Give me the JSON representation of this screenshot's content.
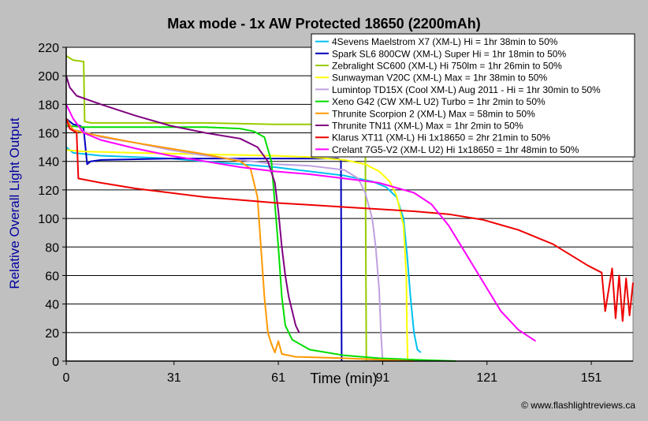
{
  "chart_data": {
    "type": "line",
    "title": "Max mode - 1x AW Protected 18650 (2200mAh)",
    "xlabel": "Time (min)",
    "ylabel": "Relative Overall Light Output",
    "xlim": [
      0,
      163
    ],
    "ylim": [
      0,
      220
    ],
    "x_ticks": [
      0,
      31,
      61,
      91,
      121,
      151
    ],
    "y_ticks": [
      0,
      20,
      40,
      60,
      80,
      100,
      120,
      140,
      160,
      180,
      200,
      220
    ],
    "grid": "horizontal",
    "legend_position": "top-right",
    "series": [
      {
        "name": "4Sevens Maelstrom X7 (XM-L) Hi = 1hr 38min to 50%",
        "color": "#00c0f0",
        "points": [
          [
            0,
            150
          ],
          [
            2,
            146
          ],
          [
            10,
            144
          ],
          [
            20,
            143
          ],
          [
            30,
            142
          ],
          [
            40,
            140
          ],
          [
            50,
            138
          ],
          [
            60,
            136
          ],
          [
            70,
            133
          ],
          [
            80,
            130
          ],
          [
            88,
            126
          ],
          [
            92,
            122
          ],
          [
            95,
            115
          ],
          [
            97,
            100
          ],
          [
            98,
            75
          ],
          [
            99,
            45
          ],
          [
            100,
            20
          ],
          [
            101,
            8
          ],
          [
            102,
            6
          ]
        ]
      },
      {
        "name": "Spark SL6 800CW (XM-L) Super Hi = 1hr 18min to 50%",
        "color": "#0000c0",
        "points": [
          [
            0,
            170
          ],
          [
            2,
            166
          ],
          [
            4,
            165
          ],
          [
            5,
            163
          ],
          [
            6,
            138
          ],
          [
            7,
            140
          ],
          [
            10,
            141
          ],
          [
            30,
            142
          ],
          [
            50,
            142
          ],
          [
            70,
            142
          ],
          [
            78,
            142
          ],
          [
            79,
            141
          ],
          [
            79.2,
            0
          ]
        ]
      },
      {
        "name": "Zebralight SC600 (XM-L) Hi 750lm = 1hr 26min to 50%",
        "color": "#99cc00",
        "points": [
          [
            0,
            214
          ],
          [
            2,
            211
          ],
          [
            5,
            210
          ],
          [
            5.3,
            168
          ],
          [
            7,
            167
          ],
          [
            20,
            167
          ],
          [
            40,
            167
          ],
          [
            60,
            166
          ],
          [
            75,
            166
          ],
          [
            85.5,
            166
          ],
          [
            86,
            165
          ],
          [
            86.3,
            0
          ]
        ]
      },
      {
        "name": "Sunwayman V20C (XM-L) Max = 1hr 38min to 50%",
        "color": "#ffff00",
        "points": [
          [
            0,
            148
          ],
          [
            5,
            147
          ],
          [
            20,
            146
          ],
          [
            40,
            145
          ],
          [
            60,
            144
          ],
          [
            70,
            143
          ],
          [
            80,
            141
          ],
          [
            86,
            138
          ],
          [
            90,
            133
          ],
          [
            93,
            126
          ],
          [
            95,
            116
          ],
          [
            97,
            95
          ],
          [
            97.8,
            60
          ],
          [
            98,
            20
          ],
          [
            98.2,
            0
          ]
        ]
      },
      {
        "name": "Lumintop TD15X (Cool XM-L) Aug 2011 - Hi = 1hr 30min to 50%",
        "color": "#c0a0e0",
        "points": [
          [
            0,
            165
          ],
          [
            2,
            162
          ],
          [
            5,
            161
          ],
          [
            10,
            157
          ],
          [
            20,
            153
          ],
          [
            30,
            148
          ],
          [
            40,
            144
          ],
          [
            50,
            141
          ],
          [
            60,
            138
          ],
          [
            70,
            137
          ],
          [
            80,
            134
          ],
          [
            84,
            128
          ],
          [
            86,
            118
          ],
          [
            88,
            100
          ],
          [
            89,
            80
          ],
          [
            90,
            50
          ],
          [
            90.5,
            20
          ],
          [
            91,
            0
          ]
        ]
      },
      {
        "name": "Xeno G42 (CW XM-L U2) Turbo = 1hr 2min to 50%",
        "color": "#00dd00",
        "points": [
          [
            0,
            165
          ],
          [
            5,
            164
          ],
          [
            20,
            164
          ],
          [
            40,
            164
          ],
          [
            50,
            163
          ],
          [
            54,
            161
          ],
          [
            57,
            157
          ],
          [
            59,
            140
          ],
          [
            60,
            110
          ],
          [
            61,
            80
          ],
          [
            62,
            45
          ],
          [
            63,
            25
          ],
          [
            65,
            15
          ],
          [
            70,
            8
          ],
          [
            80,
            4
          ],
          [
            90,
            2
          ],
          [
            100,
            1
          ],
          [
            112,
            0
          ]
        ]
      },
      {
        "name": "Thrunite Scorpion 2 (XM-L) Max = 58min to 50%",
        "color": "#ff9900",
        "points": [
          [
            0,
            170
          ],
          [
            1,
            166
          ],
          [
            2,
            162
          ],
          [
            5,
            160
          ],
          [
            20,
            153
          ],
          [
            40,
            145
          ],
          [
            50,
            140
          ],
          [
            53,
            135
          ],
          [
            55,
            115
          ],
          [
            56,
            80
          ],
          [
            57,
            45
          ],
          [
            58,
            20
          ],
          [
            59,
            12
          ],
          [
            60,
            6
          ],
          [
            61,
            14
          ],
          [
            62,
            5
          ],
          [
            66,
            3
          ],
          [
            80,
            2
          ],
          [
            90,
            1
          ],
          [
            100,
            0
          ]
        ]
      },
      {
        "name": "Thrunite TN11 (XM-L) Max = 1hr 2min to 50%",
        "color": "#800080",
        "points": [
          [
            0,
            200
          ],
          [
            1,
            192
          ],
          [
            3,
            186
          ],
          [
            10,
            180
          ],
          [
            20,
            172
          ],
          [
            30,
            165
          ],
          [
            40,
            160
          ],
          [
            50,
            156
          ],
          [
            55,
            150
          ],
          [
            58,
            140
          ],
          [
            60,
            125
          ],
          [
            61,
            105
          ],
          [
            62,
            80
          ],
          [
            63,
            60
          ],
          [
            64,
            45
          ],
          [
            65,
            35
          ],
          [
            66,
            25
          ],
          [
            67,
            20
          ]
        ]
      },
      {
        "name": "Klarus XT11 (XM-L) Hi 1x18650 = 2hr 21min to 50%",
        "color": "#ee0000",
        "points": [
          [
            0,
            170
          ],
          [
            1,
            163
          ],
          [
            3,
            160
          ],
          [
            3.5,
            128
          ],
          [
            10,
            125
          ],
          [
            20,
            121
          ],
          [
            40,
            115
          ],
          [
            60,
            111
          ],
          [
            80,
            108
          ],
          [
            100,
            105
          ],
          [
            110,
            103
          ],
          [
            120,
            99
          ],
          [
            130,
            92
          ],
          [
            140,
            82
          ],
          [
            150,
            67
          ],
          [
            154,
            62
          ],
          [
            155,
            35
          ],
          [
            156,
            50
          ],
          [
            157,
            65
          ],
          [
            158,
            30
          ],
          [
            159,
            60
          ],
          [
            160,
            28
          ],
          [
            161,
            58
          ],
          [
            162,
            32
          ],
          [
            163,
            55
          ]
        ]
      },
      {
        "name": "Crelant 7G5-V2 (XM-L U2) Hi 1x18650 = 1hr 48min to 50%",
        "color": "#ff00ff",
        "points": [
          [
            0,
            180
          ],
          [
            2,
            170
          ],
          [
            5,
            160
          ],
          [
            10,
            155
          ],
          [
            20,
            149
          ],
          [
            30,
            144
          ],
          [
            40,
            140
          ],
          [
            50,
            136
          ],
          [
            60,
            133
          ],
          [
            70,
            131
          ],
          [
            80,
            128
          ],
          [
            90,
            125
          ],
          [
            100,
            118
          ],
          [
            105,
            110
          ],
          [
            110,
            95
          ],
          [
            115,
            75
          ],
          [
            120,
            55
          ],
          [
            125,
            35
          ],
          [
            130,
            22
          ],
          [
            135,
            14
          ]
        ]
      }
    ]
  },
  "credit": "© www.flashlightreviews.ca"
}
